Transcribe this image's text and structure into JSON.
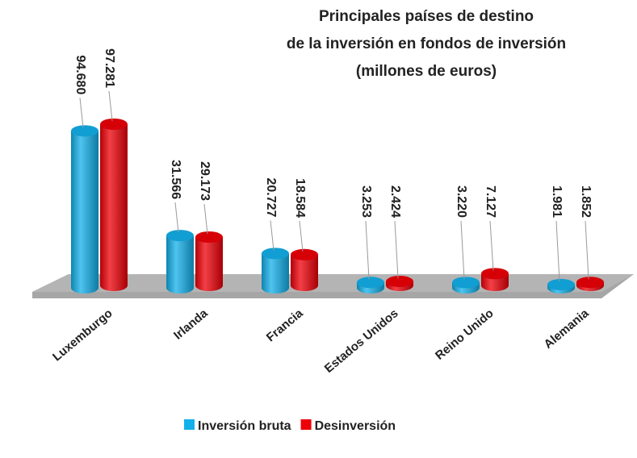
{
  "chart_data": {
    "type": "bar",
    "title": [
      "Principales países de destino",
      "de la inversión en fondos de inversión",
      "(millones de euros)"
    ],
    "categories": [
      "Luxemburgo",
      "Irlanda",
      "Francia",
      "Estados Unidos",
      "Reino Unido",
      "Alemania"
    ],
    "series": [
      {
        "name": "Inversión bruta",
        "color": "#13b0ea",
        "values": [
          94680,
          31566,
          20727,
          3253,
          3220,
          1981
        ],
        "value_labels": [
          "94.680",
          "31.566",
          "20.727",
          "3.253",
          "3.220",
          "1.981"
        ]
      },
      {
        "name": "Desinversión",
        "color": "#ee0008",
        "values": [
          97281,
          29173,
          18584,
          2424,
          7127,
          1852
        ],
        "value_labels": [
          "97.281",
          "29.173",
          "18.584",
          "2.424",
          "7.127",
          "1.852"
        ]
      }
    ],
    "legend": "bottom"
  }
}
